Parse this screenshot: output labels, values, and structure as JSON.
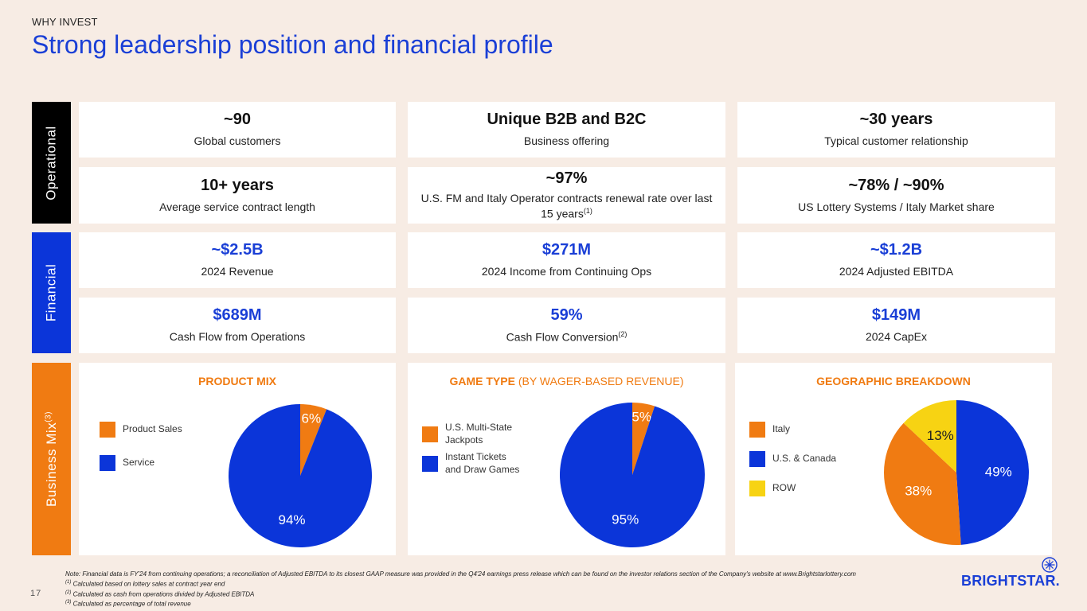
{
  "header": {
    "eyebrow": "WHY INVEST",
    "title": "Strong leadership position and financial profile"
  },
  "sections": {
    "operational": "Operational",
    "financial": "Financial",
    "business_mix": "Business Mix",
    "business_mix_sup": "(3)"
  },
  "operational": [
    {
      "value": "~90",
      "label": "Global customers"
    },
    {
      "value": "Unique B2B and B2C",
      "label": "Business offering"
    },
    {
      "value": "~30 years",
      "label": "Typical customer relationship"
    },
    {
      "value": "10+ years",
      "label": "Average service contract length"
    },
    {
      "value": "~97%",
      "label": "U.S. FM and Italy Operator contracts renewal rate over last 15 years",
      "sup": "(1)"
    },
    {
      "value": "~78% / ~90%",
      "label": "US Lottery Systems / Italy Market share"
    }
  ],
  "financial": [
    {
      "value": "~$2.5B",
      "label": "2024 Revenue"
    },
    {
      "value": "$271M",
      "label": "2024 Income from Continuing Ops"
    },
    {
      "value": "~$1.2B",
      "label": "2024 Adjusted EBITDA"
    },
    {
      "value": "$689M",
      "label": "Cash Flow from Operations"
    },
    {
      "value": "59%",
      "label": "Cash Flow Conversion",
      "sup": "(2)"
    },
    {
      "value": "$149M",
      "label": "2024 CapEx"
    }
  ],
  "product_mix": {
    "title": "PRODUCT MIX",
    "legend": [
      "Product Sales",
      "Service"
    ]
  },
  "game_type": {
    "title": "GAME TYPE",
    "title_suffix": " (BY WAGER-BASED REVENUE)",
    "legend": [
      "U.S. Multi-State Jackpots",
      "Instant Tickets and Draw Games"
    ]
  },
  "geographic": {
    "title": "GEOGRAPHIC BREAKDOWN",
    "legend": [
      "Italy",
      "U.S. & Canada",
      "ROW"
    ]
  },
  "chart_data": [
    {
      "type": "pie",
      "title": "PRODUCT MIX",
      "categories": [
        "Product Sales",
        "Service"
      ],
      "values": [
        6,
        94
      ],
      "labels": [
        "6%",
        "94%"
      ],
      "colors": [
        "#f07b12",
        "#0b35d9"
      ]
    },
    {
      "type": "pie",
      "title": "GAME TYPE (BY WAGER-BASED REVENUE)",
      "categories": [
        "U.S. Multi-State Jackpots",
        "Instant Tickets and Draw Games"
      ],
      "values": [
        5,
        95
      ],
      "labels": [
        "5%",
        "95%"
      ],
      "colors": [
        "#f07b12",
        "#0b35d9"
      ]
    },
    {
      "type": "pie",
      "title": "GEOGRAPHIC BREAKDOWN",
      "categories": [
        "U.S. & Canada",
        "Italy",
        "ROW"
      ],
      "values": [
        49,
        38,
        13
      ],
      "labels": [
        "49%",
        "38%",
        "13%"
      ],
      "colors": [
        "#0b35d9",
        "#f07b12",
        "#f7d313"
      ]
    }
  ],
  "colors": {
    "blue": "#0b35d9",
    "orange": "#f07b12",
    "yellow": "#f7d313",
    "black": "#000000"
  },
  "footnotes": {
    "note": "Note: Financial data is FY'24 from continuing operations; a reconciliation of Adjusted EBITDA to its closest GAAP measure was provided in the Q4'24 earnings press release which can be found on the investor relations section of the Company's website at www.Brightstarlottery.com",
    "n1_mark": "(1)",
    "n1": " Calculated based on lottery sales at contract year end",
    "n2_mark": "(2)",
    "n2": " Calculated as cash from operations divided by Adjusted EBITDA",
    "n3_mark": "(3)",
    "n3": " Calculated as percentage of total revenue"
  },
  "page_number": "17",
  "logo_text": "BRIGHTSTAR."
}
